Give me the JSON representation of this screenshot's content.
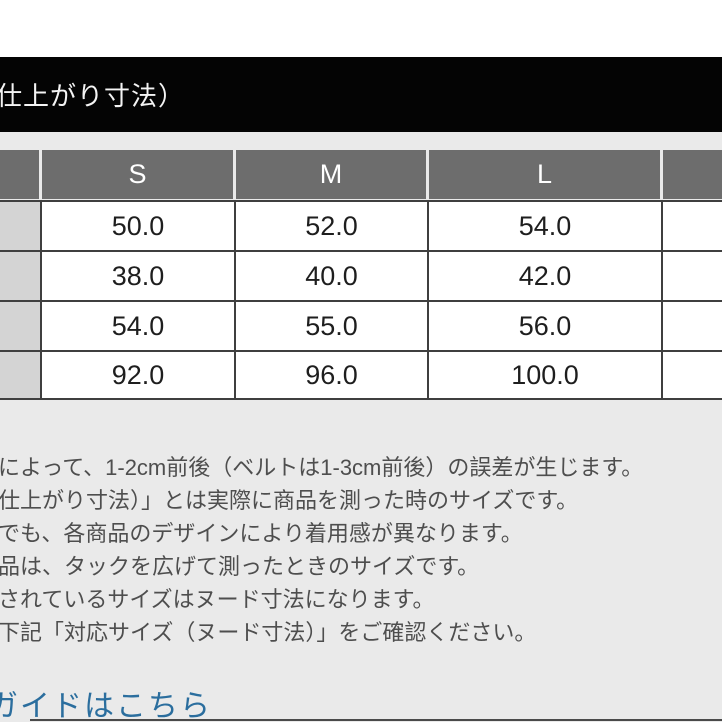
{
  "header": {
    "title": "仕上がり寸法）"
  },
  "size_table": {
    "column_headers": [
      "S",
      "M",
      "L"
    ],
    "rows": [
      [
        "50.0",
        "52.0",
        "54.0"
      ],
      [
        "38.0",
        "40.0",
        "42.0"
      ],
      [
        "54.0",
        "55.0",
        "56.0"
      ],
      [
        "92.0",
        "96.0",
        "100.0"
      ]
    ]
  },
  "notes": {
    "lines": [
      "によって、1-2cm前後（ベルトは1-3cm前後）の誤差が生じます。",
      "仕上がり寸法）」とは実際に商品を測った時のサイズです。",
      "でも、各商品のデザインにより着用感が異なります。",
      "品は、タックを広げて測ったときのサイズです。",
      "されているサイズはヌード寸法になります。",
      "下記「対応サイズ（ヌード寸法）」をご確認ください。"
    ]
  },
  "footer": {
    "link_label": "ガイドはこちら"
  },
  "colors": {
    "title_bar_bg": "#040404",
    "page_bg": "#eaeaea",
    "table_header_bg": "#6d6d6d",
    "row_header_bg": "#d4d4d4",
    "table_border": "#3f3f3f",
    "note_text": "#4e4e4e",
    "link_blue": "#2b6e9e"
  }
}
